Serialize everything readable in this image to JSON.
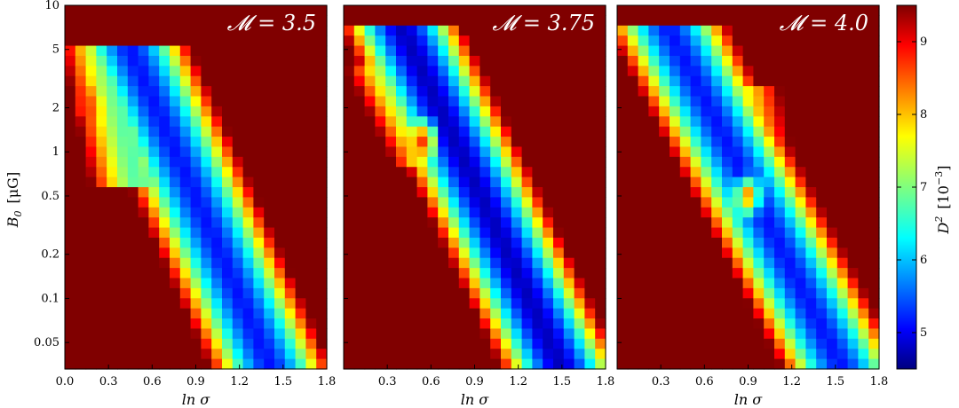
{
  "chart_data": {
    "type": "heatmap",
    "ylabel": "B_0  [μG]",
    "ylabel_parts": {
      "sym": "B",
      "sub": "0",
      "unit": "[μG]"
    },
    "y_scale": "log",
    "ylim": [
      0.033,
      10
    ],
    "y_ticks": [
      {
        "value": 10,
        "label": "10"
      },
      {
        "value": 5,
        "label": "5"
      },
      {
        "value": 2,
        "label": "2"
      },
      {
        "value": 1,
        "label": "1"
      },
      {
        "value": 0.5,
        "label": "0.5"
      },
      {
        "value": 0.2,
        "label": "0.2"
      },
      {
        "value": 0.1,
        "label": "0.1"
      },
      {
        "value": 0.05,
        "label": "0.05"
      }
    ],
    "xlim": [
      0,
      1.8
    ],
    "xlabel": "ln σ",
    "colorbar": {
      "label": "D² [10⁻³]",
      "label_parts": {
        "sym": "D",
        "sup": "2",
        "unit_base": "[10",
        "unit_exp": "−3",
        "unit_close": "]"
      },
      "range": [
        4.5,
        9.5
      ],
      "ticks": [
        "5",
        "6",
        "7",
        "8",
        "9"
      ],
      "colormap": "jet"
    },
    "panels": [
      {
        "title": "𝓜 = 3.5",
        "x_ticks": [
          "0.0",
          "0.3",
          "0.6",
          "0.9",
          "1.2",
          "1.5",
          "1.8"
        ],
        "branches": [
          {
            "y": [
              0.6,
              5.0
            ],
            "x_at_y_max": 0.3,
            "x_at_y_min": 0.5,
            "value": 6.8
          },
          {
            "y": [
              0.033,
              5.0
            ],
            "x_at_y_max": 0.45,
            "x_at_y_min": 1.42,
            "value": 5.2
          }
        ],
        "ridge_max": {
          "x": 0.15,
          "y": 2.0,
          "value": 8.6
        }
      },
      {
        "title": "𝓜 = 3.75",
        "x_ticks": [
          "0.3",
          "0.6",
          "0.9",
          "1.2",
          "1.5",
          "1.8"
        ],
        "branches": [
          {
            "y": [
              0.9,
              3.5
            ],
            "x_at_y_max": 0.35,
            "x_at_y_min": 0.65,
            "value": 6.8
          },
          {
            "y": [
              0.033,
              7.0
            ],
            "x_at_y_max": 0.4,
            "x_at_y_min": 1.5,
            "value": 4.8
          }
        ],
        "ridge_max": {
          "x": 0.55,
          "y": 1.2,
          "value": 8.8
        }
      },
      {
        "title": "𝓜 = 4.0",
        "x_ticks": [
          "0.3",
          "0.6",
          "0.9",
          "1.2",
          "1.5",
          "1.8"
        ],
        "branches": [
          {
            "y": [
              0.5,
              2.5
            ],
            "x_at_y_max": 0.8,
            "x_at_y_min": 0.95,
            "value": 7.3
          },
          {
            "y": [
              0.033,
              7.0
            ],
            "x_at_y_max": 0.35,
            "x_at_y_min": 1.55,
            "value": 5.2
          }
        ],
        "ridge_max": {
          "x": 0.9,
          "y": 0.5,
          "value": 8.5
        }
      }
    ]
  }
}
